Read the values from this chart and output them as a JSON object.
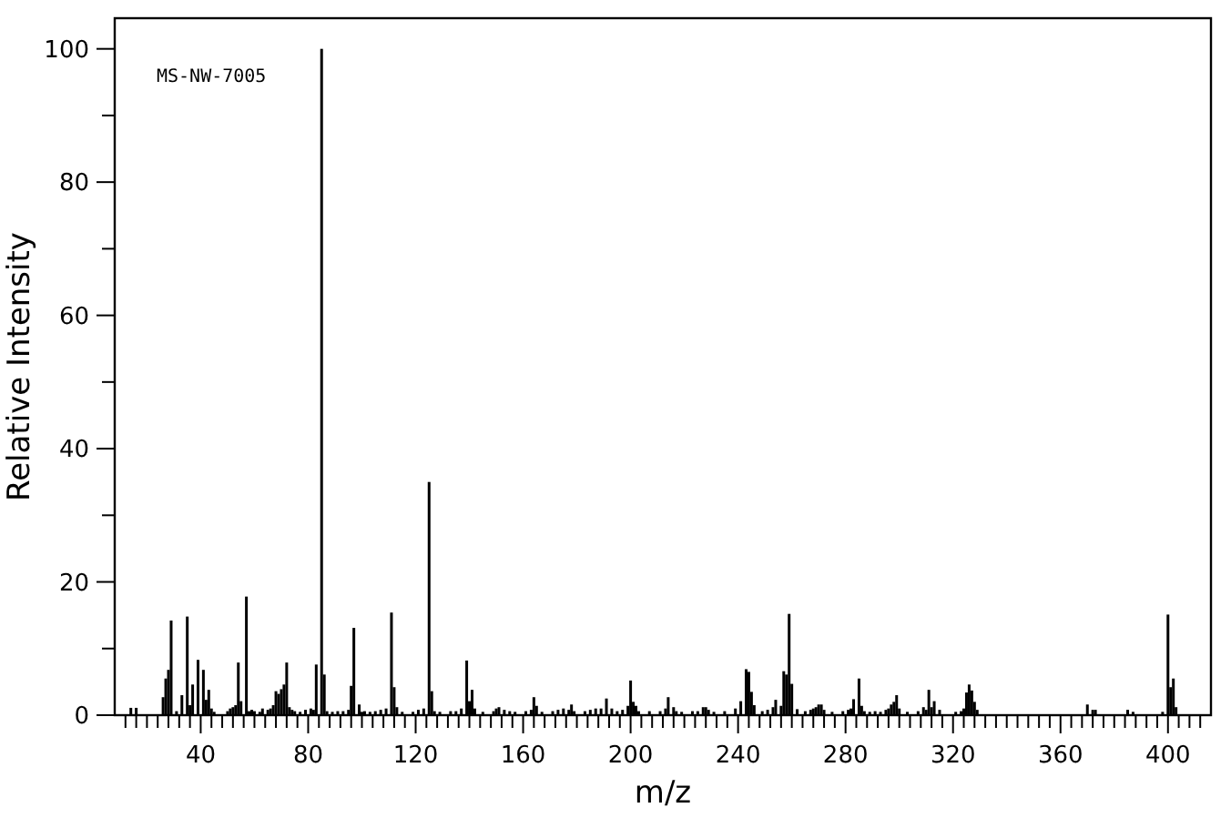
{
  "chart_data": {
    "type": "bar",
    "xlabel": "m/z",
    "ylabel": "Relative Intensity",
    "annotations": [
      "MS-NW-7005"
    ],
    "color": "#000000",
    "x": [
      14,
      16,
      26,
      27,
      28,
      29,
      31,
      33,
      35,
      36,
      37,
      39,
      41,
      42,
      43,
      44,
      45,
      50,
      51,
      52,
      53,
      54,
      55,
      57,
      58,
      59,
      60,
      62,
      63,
      65,
      66,
      67,
      68,
      69,
      70,
      71,
      72,
      73,
      74,
      75,
      77,
      79,
      81,
      82,
      83,
      85,
      86,
      87,
      89,
      91,
      93,
      95,
      96,
      97,
      99,
      100,
      101,
      103,
      105,
      107,
      109,
      111,
      112,
      113,
      115,
      119,
      121,
      123,
      125,
      126,
      127,
      129,
      133,
      135,
      137,
      139,
      140,
      141,
      142,
      145,
      149,
      150,
      151,
      153,
      155,
      157,
      161,
      163,
      164,
      165,
      167,
      171,
      173,
      175,
      177,
      178,
      179,
      183,
      185,
      187,
      189,
      191,
      193,
      195,
      197,
      199,
      200,
      201,
      202,
      203,
      207,
      211,
      213,
      214,
      216,
      217,
      219,
      223,
      225,
      227,
      228,
      229,
      231,
      235,
      239,
      241,
      243,
      244,
      245,
      246,
      249,
      251,
      253,
      254,
      256,
      257,
      258,
      259,
      260,
      262,
      265,
      267,
      268,
      269,
      270,
      271,
      272,
      275,
      279,
      281,
      282,
      283,
      285,
      286,
      287,
      289,
      291,
      293,
      295,
      296,
      297,
      298,
      299,
      300,
      303,
      307,
      309,
      310,
      311,
      312,
      313,
      315,
      321,
      323,
      324,
      325,
      326,
      327,
      328,
      329,
      370,
      372,
      373,
      385,
      387,
      398,
      400,
      401,
      402,
      403
    ],
    "values": [
      1.1,
      1.1,
      2.7,
      5.5,
      6.8,
      14.2,
      0.6,
      3.0,
      14.8,
      1.5,
      4.6,
      8.3,
      6.8,
      2.3,
      3.8,
      1.0,
      0.5,
      0.6,
      1.0,
      1.2,
      1.5,
      7.9,
      2.1,
      17.8,
      0.6,
      0.8,
      0.6,
      0.5,
      1.0,
      0.8,
      1.0,
      1.5,
      3.6,
      3.2,
      3.9,
      4.6,
      7.9,
      1.2,
      0.8,
      0.6,
      0.5,
      0.8,
      1.0,
      0.8,
      7.6,
      100,
      6.1,
      0.6,
      0.5,
      0.6,
      0.6,
      0.8,
      4.4,
      13.1,
      1.6,
      0.5,
      0.6,
      0.5,
      0.6,
      0.8,
      1.0,
      15.4,
      4.2,
      1.2,
      0.5,
      0.5,
      0.8,
      1.0,
      35.0,
      3.6,
      0.6,
      0.5,
      0.6,
      0.6,
      1.0,
      8.2,
      2.1,
      3.8,
      1.0,
      0.5,
      0.6,
      1.0,
      1.2,
      0.8,
      0.6,
      0.5,
      0.6,
      0.8,
      2.7,
      1.4,
      0.5,
      0.6,
      0.8,
      1.0,
      0.8,
      1.6,
      0.6,
      0.6,
      0.8,
      1.0,
      1.0,
      2.5,
      1.0,
      0.6,
      0.8,
      1.4,
      5.2,
      2.0,
      1.4,
      0.6,
      0.6,
      0.6,
      1.0,
      2.7,
      1.2,
      0.6,
      0.5,
      0.6,
      0.6,
      1.2,
      1.2,
      0.8,
      0.5,
      0.6,
      1.0,
      2.1,
      6.9,
      6.5,
      3.5,
      1.5,
      0.6,
      0.8,
      1.2,
      2.3,
      1.4,
      6.6,
      6.1,
      15.2,
      4.7,
      0.9,
      0.6,
      0.8,
      1.0,
      1.2,
      1.6,
      1.6,
      0.8,
      0.5,
      0.6,
      0.8,
      1.0,
      2.4,
      5.5,
      1.4,
      0.6,
      0.5,
      0.6,
      0.5,
      0.8,
      1.0,
      1.6,
      2.0,
      3.0,
      1.0,
      0.5,
      0.6,
      1.2,
      0.8,
      3.8,
      1.2,
      2.1,
      0.8,
      0.5,
      0.6,
      1.0,
      3.4,
      4.6,
      3.7,
      2.0,
      0.8,
      1.6,
      0.8,
      0.8,
      0.8,
      0.5,
      0.5,
      15.1,
      4.2,
      5.5,
      1.2
    ],
    "xlim": [
      8,
      416
    ],
    "ylim": [
      0,
      104.6
    ],
    "xticks": [
      {
        "value": 12,
        "label": null
      },
      {
        "value": 16,
        "label": null
      },
      {
        "value": 20,
        "label": null
      },
      {
        "value": 24,
        "label": null
      },
      {
        "value": 28,
        "label": null
      },
      {
        "value": 32,
        "label": null
      },
      {
        "value": 36,
        "label": null
      },
      40,
      {
        "value": 44,
        "label": null
      },
      {
        "value": 48,
        "label": null
      },
      {
        "value": 52,
        "label": null
      },
      {
        "value": 56,
        "label": null
      },
      {
        "value": 60,
        "label": null
      },
      {
        "value": 64,
        "label": null
      },
      {
        "value": 68,
        "label": null
      },
      {
        "value": 72,
        "label": null
      },
      {
        "value": 76,
        "label": null
      },
      80,
      {
        "value": 84,
        "label": null
      },
      {
        "value": 88,
        "label": null
      },
      {
        "value": 92,
        "label": null
      },
      {
        "value": 96,
        "label": null
      },
      {
        "value": 100,
        "label": null
      },
      {
        "value": 104,
        "label": null
      },
      {
        "value": 108,
        "label": null
      },
      {
        "value": 112,
        "label": null
      },
      {
        "value": 116,
        "label": null
      },
      120,
      {
        "value": 124,
        "label": null
      },
      {
        "value": 128,
        "label": null
      },
      {
        "value": 132,
        "label": null
      },
      {
        "value": 136,
        "label": null
      },
      {
        "value": 140,
        "label": null
      },
      {
        "value": 144,
        "label": null
      },
      {
        "value": 148,
        "label": null
      },
      {
        "value": 152,
        "label": null
      },
      {
        "value": 156,
        "label": null
      },
      160,
      {
        "value": 164,
        "label": null
      },
      {
        "value": 168,
        "label": null
      },
      {
        "value": 172,
        "label": null
      },
      {
        "value": 176,
        "label": null
      },
      {
        "value": 180,
        "label": null
      },
      {
        "value": 184,
        "label": null
      },
      {
        "value": 188,
        "label": null
      },
      {
        "value": 192,
        "label": null
      },
      {
        "value": 196,
        "label": null
      },
      200,
      {
        "value": 204,
        "label": null
      },
      {
        "value": 208,
        "label": null
      },
      {
        "value": 212,
        "label": null
      },
      {
        "value": 216,
        "label": null
      },
      {
        "value": 220,
        "label": null
      },
      {
        "value": 224,
        "label": null
      },
      {
        "value": 228,
        "label": null
      },
      {
        "value": 232,
        "label": null
      },
      {
        "value": 236,
        "label": null
      },
      240,
      {
        "value": 244,
        "label": null
      },
      {
        "value": 248,
        "label": null
      },
      {
        "value": 252,
        "label": null
      },
      {
        "value": 256,
        "label": null
      },
      {
        "value": 260,
        "label": null
      },
      {
        "value": 264,
        "label": null
      },
      {
        "value": 268,
        "label": null
      },
      {
        "value": 272,
        "label": null
      },
      {
        "value": 276,
        "label": null
      },
      280,
      {
        "value": 284,
        "label": null
      },
      {
        "value": 288,
        "label": null
      },
      {
        "value": 292,
        "label": null
      },
      {
        "value": 296,
        "label": null
      },
      {
        "value": 300,
        "label": null
      },
      {
        "value": 304,
        "label": null
      },
      {
        "value": 308,
        "label": null
      },
      {
        "value": 312,
        "label": null
      },
      {
        "value": 316,
        "label": null
      },
      320,
      {
        "value": 324,
        "label": null
      },
      {
        "value": 328,
        "label": null
      },
      {
        "value": 332,
        "label": null
      },
      {
        "value": 336,
        "label": null
      },
      {
        "value": 340,
        "label": null
      },
      {
        "value": 344,
        "label": null
      },
      {
        "value": 348,
        "label": null
      },
      {
        "value": 352,
        "label": null
      },
      {
        "value": 356,
        "label": null
      },
      360,
      {
        "value": 364,
        "label": null
      },
      {
        "value": 368,
        "label": null
      },
      {
        "value": 372,
        "label": null
      },
      {
        "value": 376,
        "label": null
      },
      {
        "value": 380,
        "label": null
      },
      {
        "value": 384,
        "label": null
      },
      {
        "value": 388,
        "label": null
      },
      {
        "value": 392,
        "label": null
      },
      {
        "value": 396,
        "label": null
      },
      400,
      {
        "value": 404,
        "label": null
      },
      {
        "value": 408,
        "label": null
      },
      {
        "value": 412,
        "label": null
      }
    ],
    "yticks": [
      0,
      {
        "value": 10,
        "label": null
      },
      20,
      {
        "value": 30,
        "label": null
      },
      40,
      {
        "value": 50,
        "label": null
      },
      60,
      {
        "value": 70,
        "label": null
      },
      80,
      {
        "value": 90,
        "label": null
      },
      100
    ],
    "grid": false
  }
}
